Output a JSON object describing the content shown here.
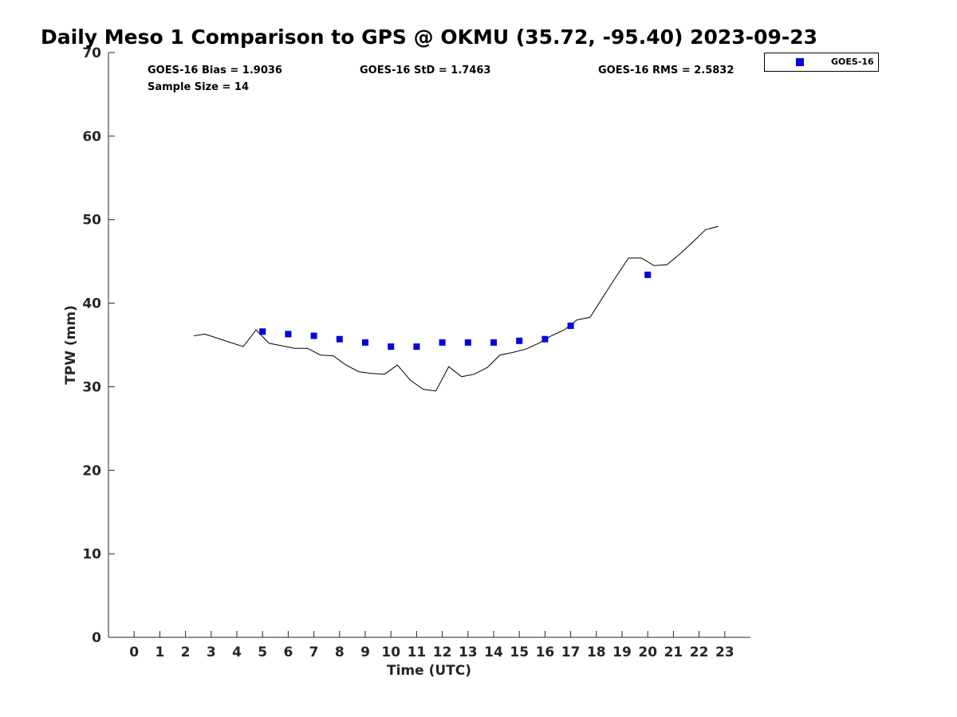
{
  "chart_data": {
    "type": "scatter",
    "title": "Daily Meso 1 Comparison to GPS @ OKMU (35.72, -95.40) 2023-09-23",
    "xlabel": "Time (UTC)",
    "ylabel": "TPW (mm)",
    "xlim": [
      -1,
      24
    ],
    "ylim": [
      0,
      70
    ],
    "xticks": [
      0,
      1,
      2,
      3,
      4,
      5,
      6,
      7,
      8,
      9,
      10,
      11,
      12,
      13,
      14,
      15,
      16,
      17,
      18,
      19,
      20,
      21,
      22,
      23
    ],
    "yticks": [
      0,
      10,
      20,
      30,
      40,
      50,
      60,
      70
    ],
    "grid": false,
    "legend_position": "top-right (outside axes)",
    "stats": {
      "bias": "GOES-16 Bias = 1.9036",
      "std": "GOES-16 StD = 1.7463",
      "rms": "GOES-16 RMS = 2.5832",
      "sample_size": "Sample Size = 14"
    },
    "series": [
      {
        "name": "GOES-16",
        "marker": "square",
        "color": "#0000dd",
        "x": [
          5,
          6,
          7,
          8,
          9,
          10,
          11,
          12,
          13,
          14,
          15,
          16,
          17,
          20
        ],
        "y": [
          36.6,
          36.3,
          36.1,
          35.7,
          35.3,
          34.8,
          34.8,
          35.3,
          35.3,
          35.3,
          35.5,
          35.7,
          37.3,
          43.4
        ]
      },
      {
        "marker": "line",
        "color": "#000000",
        "x": [
          2.33,
          2.75,
          3.25,
          3.75,
          4.25,
          4.75,
          5.25,
          5.75,
          6.25,
          6.75,
          7.25,
          7.75,
          8.25,
          8.75,
          9.25,
          9.75,
          10.25,
          10.75,
          11.25,
          11.75,
          12.25,
          12.75,
          13.25,
          13.75,
          14.25,
          14.75,
          15.25,
          15.75,
          16.25,
          16.75,
          17.25,
          17.75,
          18.25,
          18.75,
          19.25,
          19.75,
          20.25,
          20.75,
          21.25,
          21.75,
          22.25,
          22.75
        ],
        "y": [
          36.1,
          36.3,
          35.8,
          35.3,
          34.8,
          36.8,
          35.2,
          34.9,
          34.6,
          34.6,
          33.8,
          33.7,
          32.6,
          31.8,
          31.6,
          31.5,
          32.6,
          30.8,
          29.7,
          29.5,
          32.4,
          31.2,
          31.5,
          32.3,
          33.8,
          34.1,
          34.5,
          35.2,
          36.1,
          36.8,
          38.0,
          38.3,
          40.7,
          43.1,
          45.4,
          45.4,
          44.5,
          44.6,
          45.9,
          47.3,
          48.8,
          49.2
        ]
      }
    ]
  }
}
